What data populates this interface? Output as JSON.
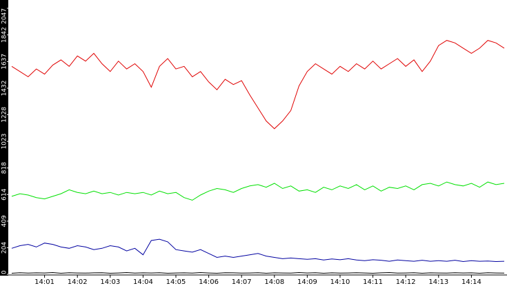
{
  "chart_data": {
    "type": "line",
    "categories": [
      null,
      null,
      null,
      null,
      "14:01",
      null,
      null,
      null,
      "14:02",
      null,
      null,
      null,
      "14:03",
      null,
      null,
      null,
      "14:04",
      null,
      null,
      null,
      "14:05",
      null,
      null,
      null,
      "14:06",
      null,
      null,
      null,
      "14:07",
      null,
      null,
      null,
      "14:08",
      null,
      null,
      null,
      "14:09",
      null,
      null,
      null,
      "14:10",
      null,
      null,
      null,
      "14:11",
      null,
      null,
      null,
      "14:12",
      null,
      null,
      null,
      "14:13",
      null,
      null,
      null,
      "14:14",
      null,
      null,
      null,
      null
    ],
    "series": [
      {
        "color": "#e00000",
        "values": [
          1600,
          1560,
          1520,
          1580,
          1540,
          1610,
          1650,
          1600,
          1680,
          1640,
          1700,
          1620,
          1560,
          1640,
          1580,
          1620,
          1560,
          1440,
          1600,
          1660,
          1580,
          1600,
          1520,
          1560,
          1480,
          1420,
          1500,
          1460,
          1490,
          1380,
          1280,
          1180,
          1120,
          1180,
          1260,
          1450,
          1560,
          1620,
          1580,
          1540,
          1600,
          1560,
          1620,
          1580,
          1640,
          1580,
          1620,
          1660,
          1600,
          1650,
          1560,
          1640,
          1760,
          1800,
          1780,
          1740,
          1700,
          1740,
          1800,
          1780,
          1740
        ]
      },
      {
        "color": "#00e000",
        "values": [
          600,
          620,
          610,
          590,
          580,
          600,
          620,
          650,
          630,
          620,
          640,
          620,
          630,
          610,
          630,
          620,
          630,
          610,
          640,
          620,
          630,
          590,
          570,
          610,
          640,
          660,
          650,
          630,
          660,
          680,
          690,
          670,
          700,
          660,
          680,
          640,
          650,
          630,
          670,
          650,
          680,
          660,
          690,
          650,
          680,
          640,
          670,
          660,
          680,
          650,
          690,
          700,
          680,
          710,
          690,
          680,
          700,
          670,
          710,
          690,
          700
        ]
      },
      {
        "color": "#0000a0",
        "values": [
          200,
          220,
          230,
          210,
          240,
          230,
          210,
          200,
          220,
          210,
          190,
          200,
          220,
          210,
          180,
          200,
          150,
          260,
          270,
          250,
          190,
          180,
          170,
          190,
          160,
          130,
          140,
          130,
          140,
          150,
          160,
          140,
          130,
          120,
          125,
          120,
          115,
          120,
          110,
          118,
          112,
          120,
          110,
          105,
          112,
          108,
          100,
          110,
          105,
          100,
          108,
          100,
          105,
          100,
          108,
          98,
          105,
          100,
          102,
          98,
          100
        ]
      },
      {
        "color": "#000000",
        "values": [
          8,
          12,
          9,
          11,
          10,
          13,
          8,
          12,
          10,
          9,
          11,
          12,
          8,
          10,
          13,
          9,
          11,
          10,
          12,
          8,
          10,
          11,
          9,
          13,
          10,
          8,
          12,
          11,
          9,
          10,
          12,
          8,
          11,
          10,
          9,
          13,
          10,
          12,
          8,
          11,
          9,
          10,
          12,
          10,
          8,
          11,
          13,
          9,
          10,
          12,
          8,
          11,
          10,
          9,
          12,
          10,
          11,
          8,
          12,
          10,
          9
        ]
      }
    ],
    "ylim": [
      0,
      2047
    ],
    "yticks": [
      0,
      204,
      409,
      614,
      818,
      1023,
      1228,
      1432,
      1637,
      1842,
      2047
    ]
  }
}
